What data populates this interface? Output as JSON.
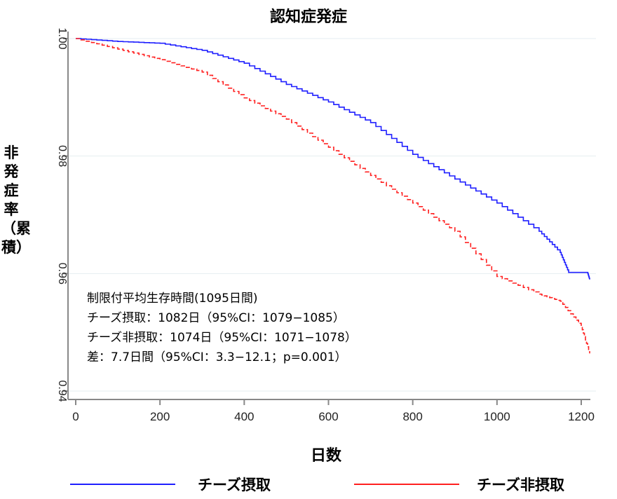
{
  "chart_data": {
    "type": "line",
    "title": "認知症発症",
    "xlabel": "日数",
    "ylabel": "非発症率（累積）",
    "xlim": [
      0,
      1230
    ],
    "ylim": [
      0.94,
      1.0
    ],
    "xticks": [
      "0",
      "200",
      "400",
      "600",
      "800",
      "1000",
      "1200"
    ],
    "xtick_values": [
      0,
      200,
      400,
      600,
      800,
      1000,
      1200
    ],
    "yticks": [
      "1.00",
      "0.98",
      "0.96",
      "0.94"
    ],
    "ytick_values": [
      1.0,
      0.98,
      0.96,
      0.94
    ],
    "grid": true,
    "legend_position": "bottom",
    "series": [
      {
        "name": "チーズ摂取",
        "color": "#1f1fff",
        "style": "solid",
        "x": [
          0,
          100,
          200,
          300,
          400,
          500,
          600,
          700,
          800,
          900,
          1000,
          1100,
          1150,
          1170,
          1215,
          1220
        ],
        "y": [
          1.0,
          0.9995,
          0.9992,
          0.998,
          0.9958,
          0.9922,
          0.9892,
          0.9857,
          0.9803,
          0.9761,
          0.972,
          0.9672,
          0.9636,
          0.9602,
          0.9602,
          0.959
        ]
      },
      {
        "name": "チーズ非摂取",
        "color": "#ff2020",
        "style": "dashed",
        "x": [
          0,
          100,
          200,
          300,
          400,
          500,
          600,
          700,
          800,
          900,
          1000,
          1100,
          1150,
          1200,
          1220
        ],
        "y": [
          1.0,
          0.9982,
          0.9964,
          0.9943,
          0.9899,
          0.9863,
          0.9815,
          0.9767,
          0.972,
          0.9672,
          0.9595,
          0.9565,
          0.9553,
          0.951,
          0.9464
        ]
      }
    ],
    "annotations": [
      "制限付平均生存時間(1095日間)",
      "チーズ摂取：1082日（95%CI：1079−1085）",
      "チーズ非摂取：1074日（95%CI：1071−1078）",
      "差：7.7日間（95%CI：3.3−12.1；p=0.001）"
    ]
  }
}
